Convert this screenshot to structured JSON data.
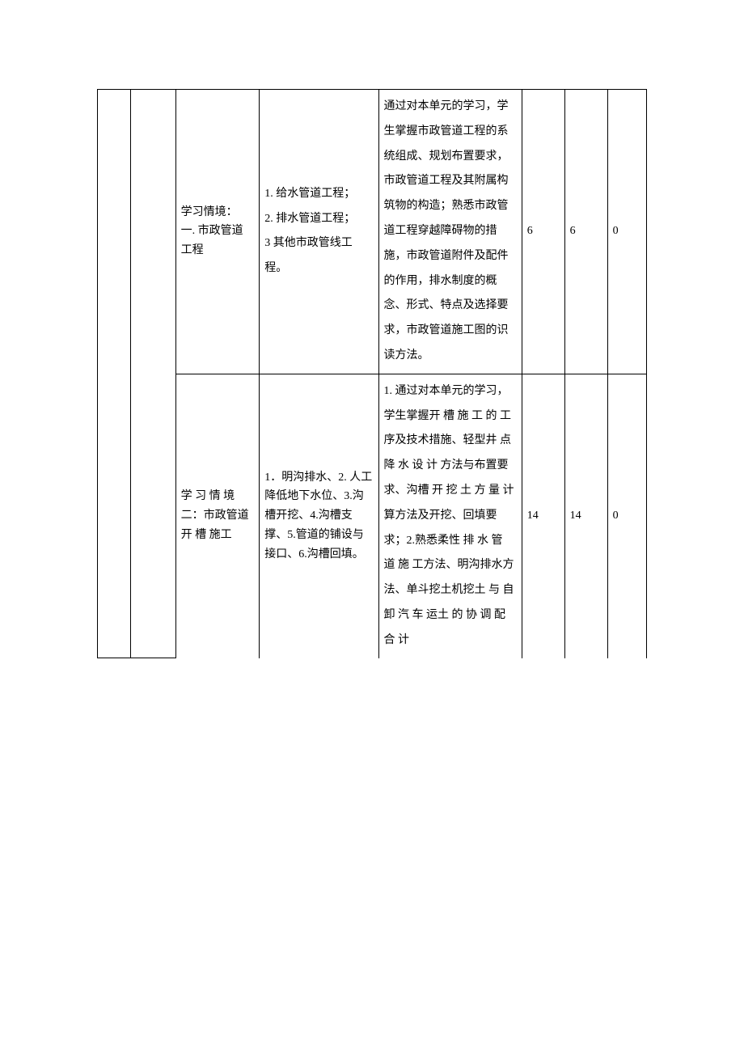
{
  "rows": [
    {
      "context_title": "学习情境：\n一. 市政管道工程",
      "content": "1. 给水管道工程；\n2. 排水管道工程；\n3 其他市政管线工程。",
      "objective": " 通过对本单元的学习，学生掌握市政管道工程的系统组成、规划布置要求，市政管道工程及其附属构筑物的构造；熟悉市政管道工程穿越障碍物的措施，市政管道附件及配件的作用，排水制度的概念、形式、特点及选择要求，市政管道施工图的识读方法。",
      "n1": "6",
      "n2": "6",
      "n3": "0"
    },
    {
      "context_title": "学 习 情 境二：市政管道 开 槽 施工",
      "content": "1．明沟排水、2. 人工降低地下水位、3.沟槽开挖、4.沟槽支撑、5.管道的铺设与接口、6.沟槽回填。",
      "objective": "1. 通过对本单元的学习，学生掌握开 槽 施 工 的 工 序及技术措施、轻型井 点 降 水 设 计 方法与布置要求、沟槽 开 挖 土 方 量 计算方法及开挖、回填要求；2.熟悉柔性 排 水 管 道 施 工方法、明沟排水方法、单斗挖土机挖土 与 自 卸 汽 车 运土 的 协 调 配 合 计",
      "n1": "14",
      "n2": "14",
      "n3": "0"
    }
  ]
}
